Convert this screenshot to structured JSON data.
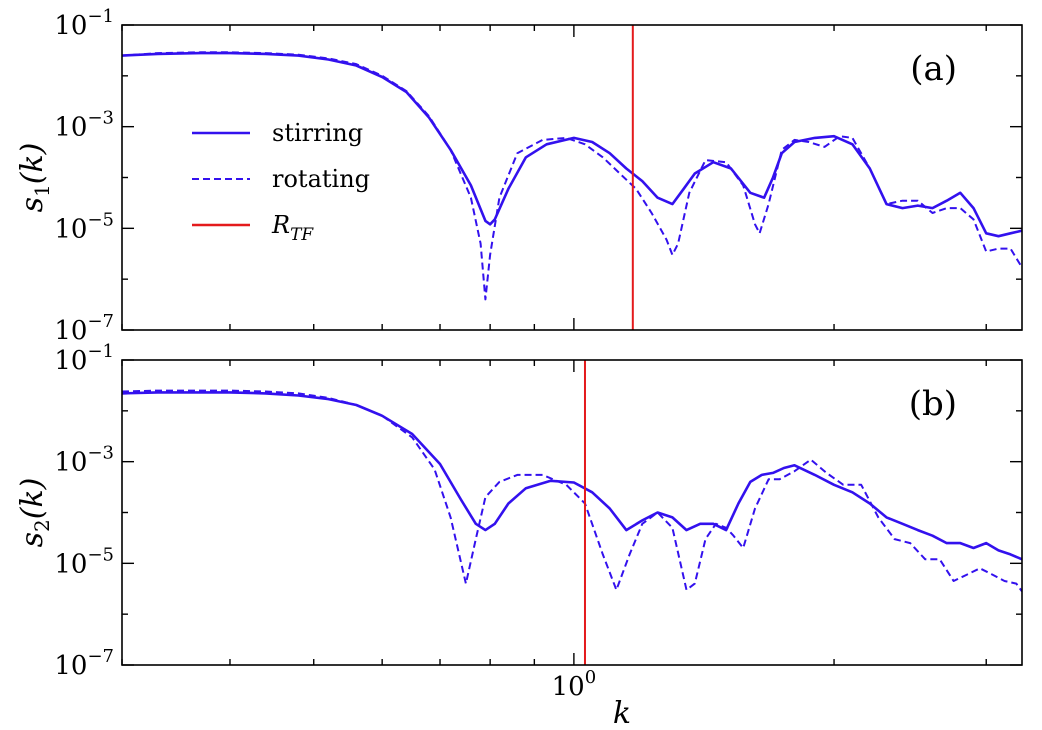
{
  "chart_data": [
    {
      "type": "line",
      "panel_label": "(a)",
      "ylabel": "s1(k)",
      "ylabel_main": "s",
      "ylabel_sub": "1",
      "ylabel_tail": "(k)",
      "yscale": "log",
      "xscale": "log",
      "ylim": [
        1e-07,
        0.1
      ],
      "xlim": [
        0.3,
        3.3
      ],
      "yticks": [
        "10^-1",
        "10^-3",
        "10^-5",
        "10^-7"
      ],
      "ytick_values": [
        0.1,
        0.001,
        1e-05,
        1e-07
      ],
      "vline": {
        "name": "R_TF",
        "x": 1.17,
        "color": "#e41a1c"
      },
      "legend": {
        "position": "upper-left",
        "entries": [
          {
            "label": "stirring",
            "style": "solid",
            "color": "#3311ee"
          },
          {
            "label": "rotating",
            "style": "dashed",
            "color": "#3311ee"
          },
          {
            "label": "R_TF",
            "label_main": "R",
            "label_sub": "TF",
            "style": "solid",
            "color": "#e41a1c"
          }
        ]
      },
      "series": [
        {
          "name": "stirring",
          "style": "solid",
          "color": "#3311ee",
          "x": [
            0.3,
            0.33,
            0.37,
            0.4,
            0.44,
            0.48,
            0.52,
            0.56,
            0.6,
            0.64,
            0.68,
            0.72,
            0.76,
            0.79,
            0.8,
            0.81,
            0.84,
            0.88,
            0.93,
            1.0,
            1.05,
            1.1,
            1.15,
            1.2,
            1.25,
            1.3,
            1.34,
            1.38,
            1.45,
            1.52,
            1.6,
            1.66,
            1.7,
            1.74,
            1.8,
            1.9,
            2.0,
            2.1,
            2.2,
            2.3,
            2.4,
            2.5,
            2.6,
            2.7,
            2.8,
            2.9,
            3.0,
            3.1,
            3.2,
            3.3
          ],
          "y": [
            0.025,
            0.027,
            0.028,
            0.028,
            0.027,
            0.025,
            0.021,
            0.016,
            0.0095,
            0.0048,
            0.0015,
            0.00035,
            7e-05,
            1.4e-05,
            1.2e-05,
            1.5e-05,
            6e-05,
            0.00025,
            0.00045,
            0.0006,
            0.0005,
            0.0003,
            0.00015,
            8.5e-05,
            4e-05,
            3e-05,
            6e-05,
            0.00012,
            0.0002,
            0.00015,
            5e-05,
            4e-05,
            0.0001,
            0.0003,
            0.0005,
            0.0006,
            0.00065,
            0.00045,
            0.00015,
            3e-05,
            2.5e-05,
            2.8e-05,
            2.5e-05,
            3.5e-05,
            5e-05,
            2.5e-05,
            8e-06,
            7e-06,
            8e-06,
            9e-06
          ]
        },
        {
          "name": "rotating",
          "style": "dashed",
          "color": "#3311ee",
          "x": [
            0.3,
            0.33,
            0.37,
            0.4,
            0.44,
            0.48,
            0.52,
            0.56,
            0.6,
            0.64,
            0.68,
            0.72,
            0.76,
            0.78,
            0.79,
            0.8,
            0.82,
            0.86,
            0.92,
            0.98,
            1.03,
            1.08,
            1.13,
            1.18,
            1.23,
            1.28,
            1.3,
            1.32,
            1.36,
            1.42,
            1.5,
            1.57,
            1.62,
            1.64,
            1.68,
            1.74,
            1.8,
            1.87,
            1.95,
            2.03,
            2.1,
            2.2,
            2.3,
            2.4,
            2.5,
            2.6,
            2.7,
            2.8,
            2.9,
            3.0,
            3.1,
            3.2,
            3.3
          ],
          "y": [
            0.025,
            0.028,
            0.029,
            0.029,
            0.028,
            0.026,
            0.022,
            0.017,
            0.01,
            0.005,
            0.0016,
            0.00035,
            4e-05,
            5e-06,
            4e-07,
            3e-06,
            4e-05,
            0.0003,
            0.00055,
            0.0006,
            0.00045,
            0.00025,
            0.00012,
            6e-05,
            2e-05,
            6e-06,
            3e-06,
            5e-06,
            5e-05,
            0.00022,
            0.0002,
            7e-05,
            1.2e-05,
            8e-06,
            3e-05,
            0.00035,
            0.00055,
            0.0005,
            0.0004,
            0.00065,
            0.0006,
            0.00015,
            3e-05,
            3.5e-05,
            3.5e-05,
            2e-05,
            2.5e-05,
            2.5e-05,
            1.5e-05,
            3.5e-06,
            4e-06,
            4e-06,
            1.7e-06
          ]
        }
      ]
    },
    {
      "type": "line",
      "panel_label": "(b)",
      "ylabel": "s2(k)",
      "ylabel_main": "s",
      "ylabel_sub": "2",
      "ylabel_tail": "(k)",
      "xlabel": "k",
      "yscale": "log",
      "xscale": "log",
      "ylim": [
        1e-07,
        0.1
      ],
      "xlim": [
        0.3,
        3.3
      ],
      "xticks": [
        "10^0"
      ],
      "xtick_values": [
        1.0
      ],
      "yticks": [
        "10^-1",
        "10^-3",
        "10^-5",
        "10^-7"
      ],
      "ytick_values": [
        0.1,
        0.001,
        1e-05,
        1e-07
      ],
      "vline": {
        "name": "R_TF",
        "x": 1.03,
        "color": "#e41a1c"
      },
      "series": [
        {
          "name": "stirring",
          "style": "solid",
          "color": "#3311ee",
          "x": [
            0.3,
            0.33,
            0.37,
            0.4,
            0.44,
            0.48,
            0.52,
            0.56,
            0.6,
            0.65,
            0.7,
            0.74,
            0.77,
            0.79,
            0.81,
            0.84,
            0.88,
            0.94,
            1.0,
            1.05,
            1.1,
            1.15,
            1.2,
            1.25,
            1.3,
            1.35,
            1.4,
            1.45,
            1.5,
            1.55,
            1.6,
            1.65,
            1.7,
            1.75,
            1.8,
            1.9,
            2.0,
            2.1,
            2.2,
            2.3,
            2.4,
            2.5,
            2.6,
            2.7,
            2.8,
            2.9,
            3.0,
            3.1,
            3.2,
            3.3
          ],
          "y": [
            0.022,
            0.023,
            0.023,
            0.023,
            0.022,
            0.02,
            0.017,
            0.013,
            0.008,
            0.0035,
            0.0009,
            0.00018,
            6e-05,
            4.5e-05,
            6e-05,
            0.00015,
            0.0003,
            0.00042,
            0.00039,
            0.00025,
            0.00012,
            4.5e-05,
            7e-05,
            0.0001,
            8e-05,
            4.5e-05,
            6e-05,
            6e-05,
            4.5e-05,
            0.00015,
            0.0004,
            0.00055,
            0.0006,
            0.00075,
            0.00085,
            0.00055,
            0.00035,
            0.00025,
            0.00015,
            8e-05,
            6e-05,
            4.5e-05,
            3.5e-05,
            2.5e-05,
            2.5e-05,
            2e-05,
            2.5e-05,
            1.8e-05,
            1.5e-05,
            1.2e-05
          ]
        },
        {
          "name": "rotating",
          "style": "dashed",
          "color": "#3311ee",
          "x": [
            0.3,
            0.33,
            0.37,
            0.4,
            0.44,
            0.48,
            0.52,
            0.56,
            0.6,
            0.65,
            0.69,
            0.72,
            0.75,
            0.77,
            0.79,
            0.82,
            0.86,
            0.92,
            0.98,
            1.03,
            1.08,
            1.12,
            1.16,
            1.2,
            1.25,
            1.3,
            1.35,
            1.38,
            1.42,
            1.46,
            1.5,
            1.53,
            1.57,
            1.62,
            1.68,
            1.73,
            1.8,
            1.88,
            1.96,
            2.05,
            2.15,
            2.25,
            2.35,
            2.45,
            2.55,
            2.65,
            2.75,
            2.85,
            2.95,
            3.05,
            3.15,
            3.25,
            3.3
          ],
          "y": [
            0.024,
            0.025,
            0.025,
            0.025,
            0.024,
            0.022,
            0.018,
            0.013,
            0.008,
            0.003,
            0.0007,
            8e-05,
            4e-06,
            3e-05,
            0.0002,
            0.0004,
            0.00055,
            0.00055,
            0.00035,
            0.00015,
            1.5e-05,
            3e-06,
            1.5e-05,
            6e-05,
            0.0001,
            5e-05,
            3e-06,
            4e-06,
            3e-05,
            6e-05,
            5e-05,
            3.5e-05,
            2e-05,
            0.00012,
            0.00045,
            0.00045,
            0.00065,
            0.0011,
            0.0006,
            0.00035,
            0.00035,
            8e-05,
            3e-05,
            2.5e-05,
            1.2e-05,
            1.2e-05,
            4.5e-06,
            6e-06,
            8e-06,
            6e-06,
            4.5e-06,
            4e-06,
            2.8e-06
          ]
        }
      ]
    }
  ]
}
